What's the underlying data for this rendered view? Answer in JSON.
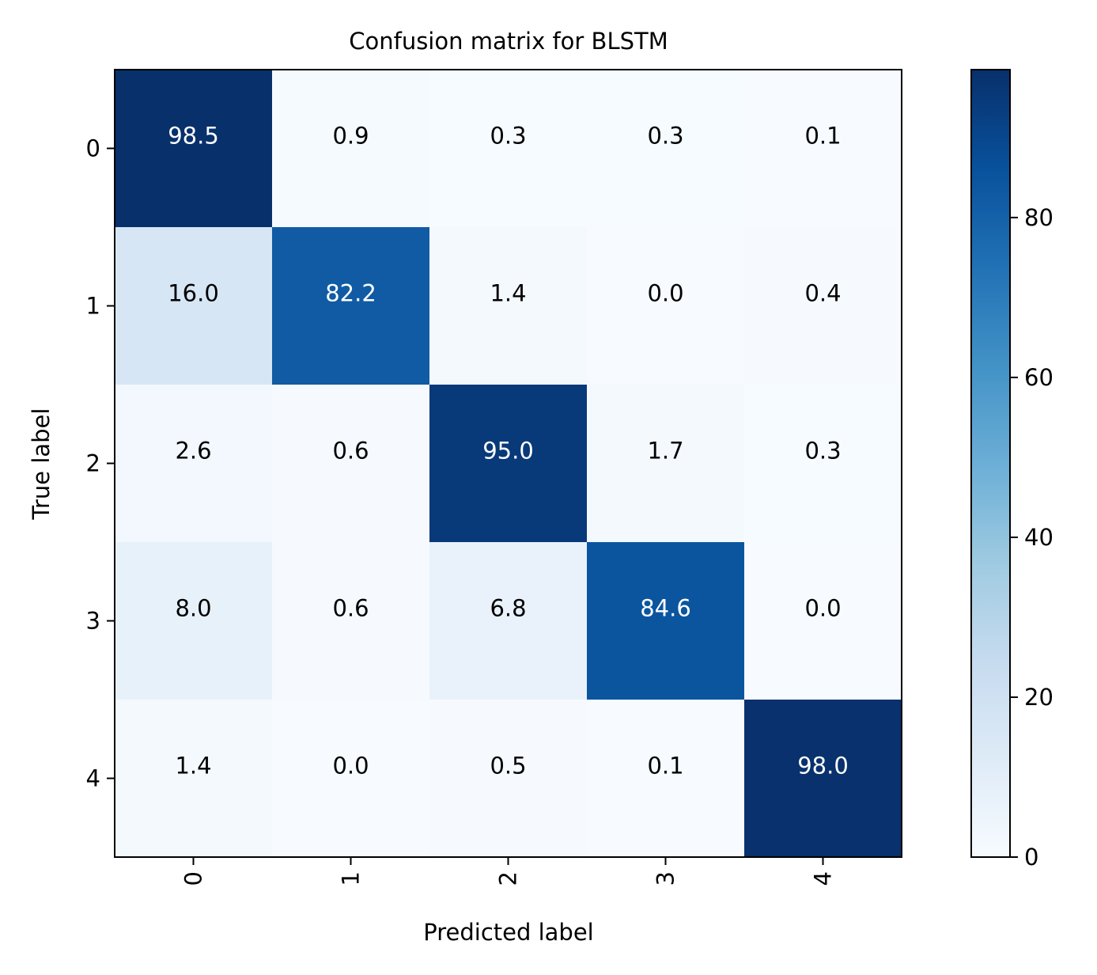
{
  "chart_data": {
    "type": "heatmap",
    "title": "Confusion matrix for BLSTM",
    "xlabel": "Predicted label",
    "ylabel": "True label",
    "x_categories": [
      "0",
      "1",
      "2",
      "3",
      "4"
    ],
    "y_categories": [
      "0",
      "1",
      "2",
      "3",
      "4"
    ],
    "values": [
      [
        98.5,
        0.9,
        0.3,
        0.3,
        0.1
      ],
      [
        16.0,
        82.2,
        1.4,
        0.0,
        0.4
      ],
      [
        2.6,
        0.6,
        95.0,
        1.7,
        0.3
      ],
      [
        8.0,
        0.6,
        6.8,
        84.6,
        0.0
      ],
      [
        1.4,
        0.0,
        0.5,
        0.1,
        98.0
      ]
    ],
    "cell_labels": [
      [
        "98.5",
        "0.9",
        "0.3",
        "0.3",
        "0.1"
      ],
      [
        "16.0",
        "82.2",
        "1.4",
        "0.0",
        "0.4"
      ],
      [
        "2.6",
        "0.6",
        "95.0",
        "1.7",
        "0.3"
      ],
      [
        "8.0",
        "0.6",
        "6.8",
        "84.6",
        "0.0"
      ],
      [
        "1.4",
        "0.0",
        "0.5",
        "0.1",
        "98.0"
      ]
    ],
    "colormap": "Blues",
    "color_range": [
      0,
      98.5
    ],
    "colorbar_ticks": [
      0,
      20,
      40,
      60,
      80
    ],
    "colorbar_tick_labels": [
      "0",
      "20",
      "40",
      "60",
      "80"
    ],
    "x_tick_rotation": "vertical",
    "grid": false,
    "text_colors": {
      "dark": "#000000",
      "light": "#ffffff"
    }
  }
}
